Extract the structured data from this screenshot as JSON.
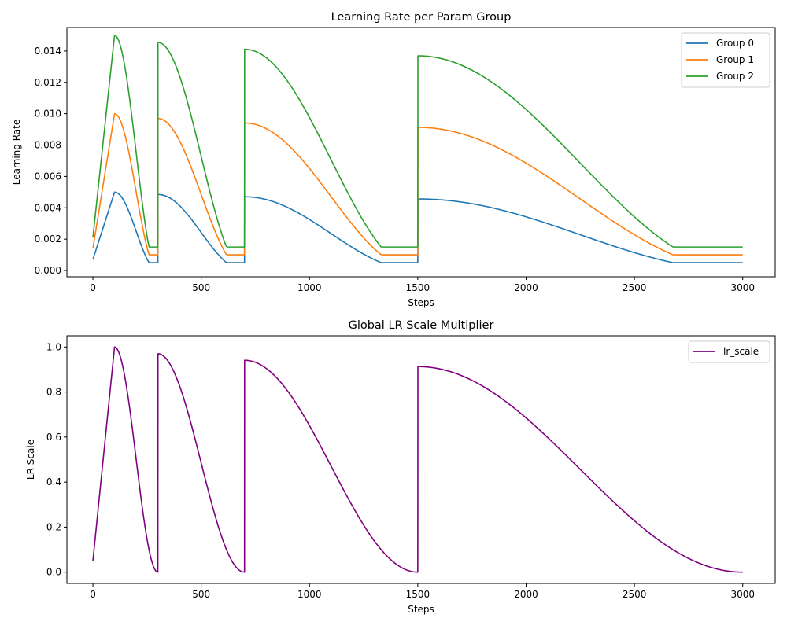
{
  "chart_data": [
    {
      "type": "line",
      "title": "Learning Rate per Param Group",
      "xlabel": "Steps",
      "ylabel": "Learning Rate",
      "xlim": [
        -120,
        3150
      ],
      "ylim": [
        -0.0004,
        0.0155
      ],
      "xticks": [
        0,
        500,
        1000,
        1500,
        2000,
        2500,
        3000
      ],
      "xtick_labels": [
        "0",
        "500",
        "1000",
        "1500",
        "2000",
        "2500",
        "3000"
      ],
      "yticks": [
        0.0,
        0.002,
        0.004,
        0.006,
        0.008,
        0.01,
        0.012,
        0.014
      ],
      "ytick_labels": [
        "0.000",
        "0.002",
        "0.004",
        "0.006",
        "0.008",
        "0.010",
        "0.012",
        "0.014"
      ],
      "grid": false,
      "legend_position": "top-right",
      "schedule": {
        "warmup_steps": 100,
        "cycle_boundaries": [
          0,
          300,
          700,
          1500,
          3000
        ],
        "cycle_peaks": [
          1.0,
          0.97,
          0.941,
          0.913
        ],
        "min_scale": 0.05,
        "total_steps": 3000
      },
      "series": [
        {
          "name": "Group 0",
          "color": "#1f77b4",
          "base_lr": 0.005,
          "floor_lr": 0.0005,
          "sample_values": {
            "x": [
              0,
              100,
              300,
              301,
              700,
              701,
              1500,
              1501,
              3000
            ],
            "y": [
              0.0007,
              0.005,
              0.0005,
              0.00485,
              0.0005,
              0.0047,
              0.0005,
              0.0046,
              0.00054
            ]
          }
        },
        {
          "name": "Group 1",
          "color": "#ff7f0e",
          "base_lr": 0.01,
          "floor_lr": 0.001,
          "sample_values": {
            "x": [
              0,
              100,
              300,
              301,
              700,
              701,
              1500,
              1501,
              3000
            ],
            "y": [
              0.0014,
              0.01,
              0.001,
              0.0097,
              0.001,
              0.0094,
              0.001,
              0.0092,
              0.0011
            ]
          }
        },
        {
          "name": "Group 2",
          "color": "#2ca02c",
          "base_lr": 0.015,
          "floor_lr": 0.0015,
          "sample_values": {
            "x": [
              0,
              100,
              300,
              301,
              700,
              701,
              1500,
              1501,
              3000
            ],
            "y": [
              0.0021,
              0.015,
              0.0015,
              0.01455,
              0.0015,
              0.01412,
              0.0015,
              0.0137,
              0.0016
            ]
          }
        }
      ]
    },
    {
      "type": "line",
      "title": "Global LR Scale Multiplier",
      "xlabel": "Steps",
      "ylabel": "LR Scale",
      "xlim": [
        -120,
        3150
      ],
      "ylim": [
        -0.05,
        1.05
      ],
      "xticks": [
        0,
        500,
        1000,
        1500,
        2000,
        2500,
        3000
      ],
      "xtick_labels": [
        "0",
        "500",
        "1000",
        "1500",
        "2000",
        "2500",
        "3000"
      ],
      "yticks": [
        0.0,
        0.2,
        0.4,
        0.6,
        0.8,
        1.0
      ],
      "ytick_labels": [
        "0.0",
        "0.2",
        "0.4",
        "0.6",
        "0.8",
        "1.0"
      ],
      "grid": false,
      "legend_position": "top-right",
      "series": [
        {
          "name": "lr_scale",
          "color": "#800080",
          "sample_values": {
            "x": [
              0,
              100,
              300,
              301,
              700,
              701,
              1500,
              1501,
              3000
            ],
            "y": [
              0.05,
              1.0,
              0.0,
              0.97,
              0.0,
              0.941,
              0.0,
              0.913,
              0.007
            ]
          }
        }
      ]
    }
  ]
}
